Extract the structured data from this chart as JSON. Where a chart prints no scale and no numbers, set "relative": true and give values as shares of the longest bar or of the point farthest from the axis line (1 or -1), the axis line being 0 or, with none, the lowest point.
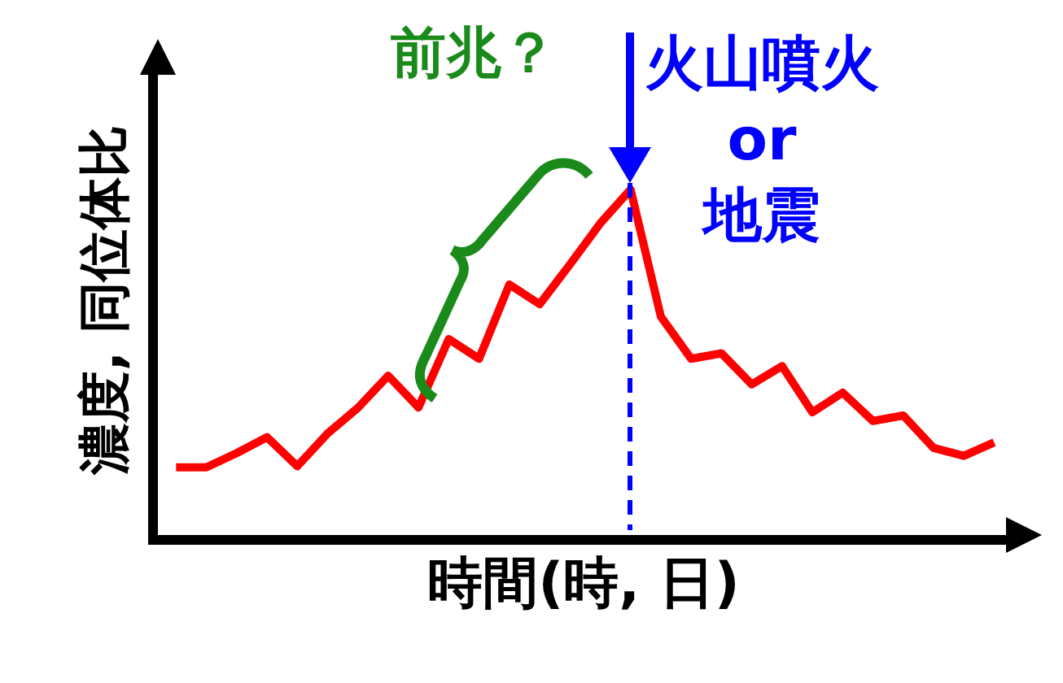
{
  "chart_data": {
    "type": "line",
    "relative": true,
    "xlabel": "時間(時, 日)",
    "ylabel": "濃度, 同位体比",
    "tick_labels": false,
    "grid": false,
    "marker": "none",
    "line_style": "solid",
    "categories": [
      null,
      null,
      null,
      null,
      null,
      null,
      null,
      null,
      null,
      null,
      null,
      null,
      null,
      null,
      null,
      null,
      null,
      null,
      null,
      null,
      null,
      null,
      null,
      null,
      null,
      null,
      null,
      null
    ],
    "series": [
      {
        "color": "#ff0000",
        "values": [
          0.196,
          0.196,
          0.237,
          0.283,
          0.199,
          0.294,
          0.368,
          0.461,
          0.369,
          0.567,
          0.51,
          0.725,
          0.668,
          0.783,
          0.902,
          1,
          0.632,
          0.51,
          0.526,
          0.436,
          0.489,
          0.355,
          0.412,
          0.33,
          0.346,
          0.252,
          0.229,
          0.268
        ]
      }
    ],
    "annotations": [
      "前兆？",
      "火山噴火\nor\n地震"
    ]
  }
}
